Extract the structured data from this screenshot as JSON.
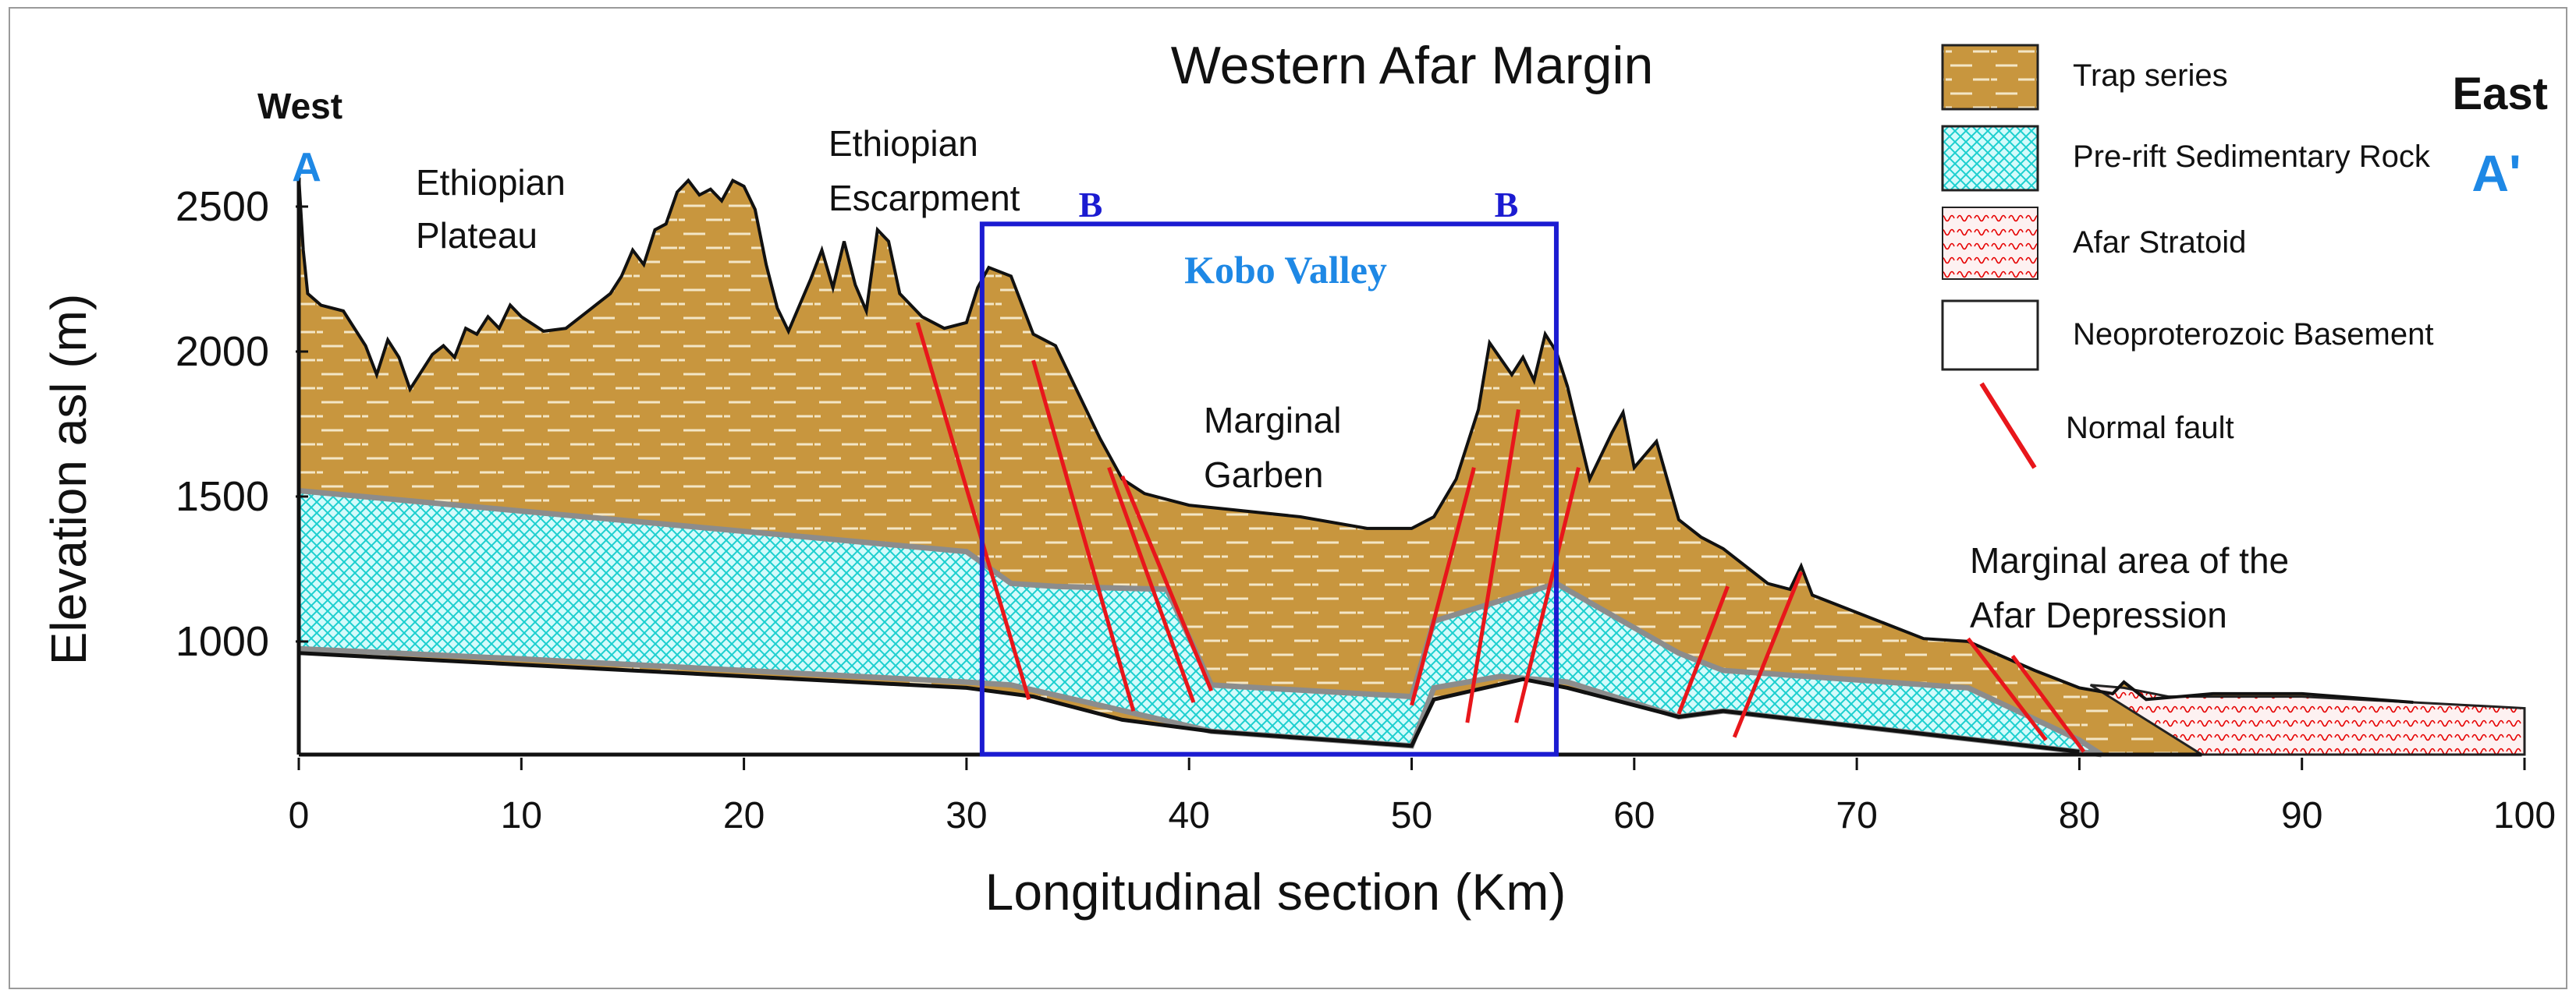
{
  "title": "Western Afar Margin",
  "directions": {
    "west": "West",
    "east": "East"
  },
  "section_points": {
    "start": "A",
    "end": "A'",
    "box": "B"
  },
  "region_labels": {
    "plateau_line1": "Ethiopian",
    "plateau_line2": "Plateau",
    "escarpment_line1": "Ethiopian",
    "escarpment_line2": "Escarpment",
    "kobo_valley": "Kobo Valley",
    "graben_line1": "Marginal",
    "graben_line2": "Garben",
    "depression_line1": "Marginal area of the",
    "depression_line2": "Afar Depression"
  },
  "legend": [
    {
      "key": "trap",
      "label": "Trap series"
    },
    {
      "key": "sed",
      "label": "Pre-rift Sedimentary Rock"
    },
    {
      "key": "strat",
      "label": "Afar Stratoid"
    },
    {
      "key": "base",
      "label": "Neoproterozoic Basement"
    },
    {
      "key": "fault",
      "label": "Normal fault"
    }
  ],
  "colors": {
    "trap": "#c8963e",
    "sed": "#26d6d6",
    "strat": "#e60000",
    "fault": "#e8161b",
    "box": "#1b1bd1",
    "label_blue": "#1e88e5"
  },
  "chart_data": {
    "type": "cross-section",
    "title": "Western Afar Margin",
    "xlabel": "Longitudinal section (Km)",
    "ylabel": "Elevation asl (m)",
    "xlim": [
      0,
      100
    ],
    "ylim": [
      600,
      2600
    ],
    "x_ticks": [
      "0",
      "10",
      "20",
      "30",
      "40",
      "50",
      "60",
      "70",
      "80",
      "90",
      "100"
    ],
    "y_ticks": [
      "2500",
      "2000",
      "1500",
      "1000"
    ],
    "x_tick_values": [
      0,
      10,
      20,
      30,
      40,
      50,
      60,
      70,
      80,
      90,
      100
    ],
    "y_tick_values": [
      2500,
      2000,
      1500,
      1000
    ],
    "base_elevation": 610,
    "topography": [
      [
        0,
        2600
      ],
      [
        0.2,
        2350
      ],
      [
        0.4,
        2200
      ],
      [
        1,
        2160
      ],
      [
        2,
        2140
      ],
      [
        3,
        2020
      ],
      [
        3.5,
        1920
      ],
      [
        4,
        2040
      ],
      [
        4.5,
        1980
      ],
      [
        5,
        1870
      ],
      [
        6,
        1990
      ],
      [
        6.5,
        2020
      ],
      [
        7,
        1980
      ],
      [
        7.5,
        2080
      ],
      [
        8,
        2060
      ],
      [
        8.5,
        2120
      ],
      [
        9,
        2080
      ],
      [
        9.5,
        2160
      ],
      [
        10,
        2120
      ],
      [
        11,
        2070
      ],
      [
        12,
        2080
      ],
      [
        13,
        2140
      ],
      [
        14,
        2200
      ],
      [
        14.5,
        2260
      ],
      [
        15,
        2350
      ],
      [
        15.5,
        2300
      ],
      [
        16,
        2420
      ],
      [
        16.5,
        2440
      ],
      [
        17,
        2550
      ],
      [
        17.5,
        2590
      ],
      [
        18,
        2540
      ],
      [
        18.5,
        2560
      ],
      [
        19,
        2520
      ],
      [
        19.5,
        2590
      ],
      [
        20,
        2570
      ],
      [
        20.5,
        2490
      ],
      [
        21,
        2300
      ],
      [
        21.5,
        2150
      ],
      [
        22,
        2070
      ],
      [
        22.5,
        2160
      ],
      [
        23,
        2250
      ],
      [
        23.5,
        2350
      ],
      [
        24,
        2220
      ],
      [
        24.5,
        2380
      ],
      [
        25,
        2230
      ],
      [
        25.5,
        2140
      ],
      [
        26,
        2420
      ],
      [
        26.5,
        2380
      ],
      [
        27,
        2200
      ],
      [
        28,
        2120
      ],
      [
        29,
        2080
      ],
      [
        30,
        2100
      ],
      [
        30.5,
        2220
      ],
      [
        31,
        2290
      ],
      [
        32,
        2260
      ],
      [
        33,
        2060
      ],
      [
        34,
        2020
      ],
      [
        35,
        1860
      ],
      [
        36,
        1700
      ],
      [
        37,
        1560
      ],
      [
        38,
        1510
      ],
      [
        40,
        1470
      ],
      [
        45,
        1430
      ],
      [
        48,
        1390
      ],
      [
        50,
        1390
      ],
      [
        51,
        1430
      ],
      [
        52,
        1560
      ],
      [
        53,
        1800
      ],
      [
        53.5,
        2030
      ],
      [
        54.5,
        1920
      ],
      [
        55,
        1980
      ],
      [
        55.5,
        1900
      ],
      [
        56,
        2060
      ],
      [
        56.5,
        2000
      ],
      [
        57,
        1880
      ],
      [
        58,
        1560
      ],
      [
        59,
        1720
      ],
      [
        59.5,
        1790
      ],
      [
        60,
        1600
      ],
      [
        61,
        1690
      ],
      [
        62,
        1420
      ],
      [
        63,
        1360
      ],
      [
        64,
        1320
      ],
      [
        66,
        1200
      ],
      [
        67,
        1180
      ],
      [
        67.5,
        1260
      ],
      [
        68,
        1160
      ],
      [
        70,
        1100
      ],
      [
        73,
        1010
      ],
      [
        75,
        1000
      ],
      [
        78,
        900
      ],
      [
        80,
        840
      ],
      [
        81.5,
        820
      ],
      [
        82,
        860
      ],
      [
        83,
        800
      ],
      [
        86,
        820
      ],
      [
        90,
        820
      ],
      [
        95,
        790
      ],
      [
        100,
        770
      ],
      [
        100,
        610
      ]
    ],
    "trap_base": [
      [
        0,
        1520
      ],
      [
        10,
        1450
      ],
      [
        20,
        1380
      ],
      [
        30,
        1310
      ],
      [
        32,
        1200
      ],
      [
        34,
        1190
      ],
      [
        39,
        1180
      ],
      [
        41,
        850
      ],
      [
        50,
        810
      ],
      [
        51,
        1070
      ],
      [
        56.5,
        1200
      ],
      [
        62,
        960
      ],
      [
        64,
        900
      ],
      [
        75,
        840
      ],
      [
        80,
        660
      ],
      [
        81,
        610
      ]
    ],
    "sed_base": [
      [
        0,
        975
      ],
      [
        10,
        940
      ],
      [
        20,
        900
      ],
      [
        30,
        860
      ],
      [
        32,
        850
      ],
      [
        36,
        780
      ],
      [
        41,
        690
      ],
      [
        50,
        640
      ],
      [
        51,
        840
      ],
      [
        54,
        880
      ],
      [
        57,
        860
      ],
      [
        62,
        740
      ],
      [
        64,
        760
      ],
      [
        80,
        620
      ],
      [
        81,
        610
      ]
    ],
    "basement_top": [
      [
        0,
        960
      ],
      [
        10,
        920
      ],
      [
        20,
        880
      ],
      [
        30,
        840
      ],
      [
        33,
        810
      ],
      [
        37,
        730
      ],
      [
        41,
        690
      ],
      [
        50,
        640
      ],
      [
        51,
        800
      ],
      [
        55,
        870
      ],
      [
        57,
        840
      ],
      [
        62,
        740
      ],
      [
        64,
        760
      ],
      [
        80,
        620
      ]
    ],
    "stratoid": [
      [
        80.5,
        850
      ],
      [
        82,
        840
      ],
      [
        84,
        810
      ],
      [
        90,
        810
      ],
      [
        95,
        790
      ],
      [
        100,
        770
      ],
      [
        100,
        610
      ],
      [
        85.5,
        610
      ]
    ],
    "faults": [
      [
        [
          27.8,
          2100
        ],
        [
          32.8,
          800
        ]
      ],
      [
        [
          33,
          1970
        ],
        [
          37.5,
          760
        ]
      ],
      [
        [
          36.4,
          1600
        ],
        [
          40.2,
          790
        ]
      ],
      [
        [
          37,
          1570
        ],
        [
          41,
          830
        ]
      ],
      [
        [
          50,
          780
        ],
        [
          52.8,
          1600
        ]
      ],
      [
        [
          52.5,
          720
        ],
        [
          54.8,
          1800
        ]
      ],
      [
        [
          54.7,
          720
        ],
        [
          57.5,
          1600
        ]
      ],
      [
        [
          62,
          750
        ],
        [
          64.2,
          1190
        ]
      ],
      [
        [
          64.5,
          670
        ],
        [
          67.5,
          1240
        ]
      ],
      [
        [
          75,
          1010
        ],
        [
          78.5,
          660
        ]
      ],
      [
        [
          77,
          950
        ],
        [
          80.2,
          620
        ]
      ]
    ],
    "kobo_box": {
      "x0": 30.7,
      "x1": 56.5,
      "y0": 611,
      "y1": 2440
    }
  }
}
